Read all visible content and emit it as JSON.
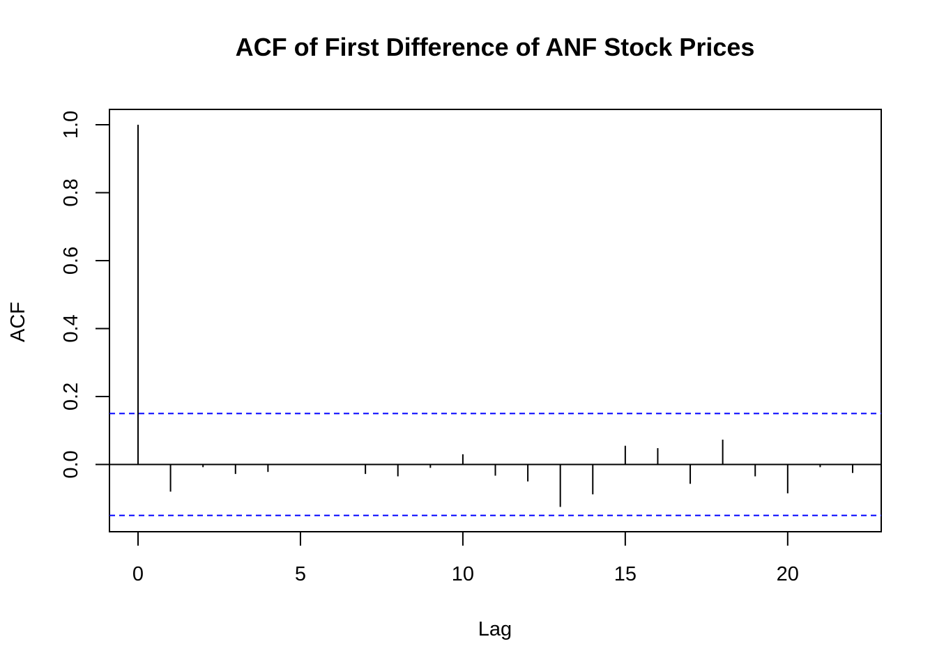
{
  "chart_data": {
    "type": "bar",
    "title": "ACF of First Difference of ANF Stock Prices",
    "xlabel": "Lag",
    "ylabel": "ACF",
    "xlim": [
      -0.88,
      22.88
    ],
    "ylim": [
      -0.198,
      1.045
    ],
    "x_ticks": [
      0,
      5,
      10,
      15,
      20
    ],
    "y_ticks": [
      0.0,
      0.2,
      0.4,
      0.6,
      0.8,
      1.0
    ],
    "x_tick_labels": [
      "0",
      "5",
      "10",
      "15",
      "20"
    ],
    "y_tick_labels": [
      "0.0",
      "0.2",
      "0.4",
      "0.6",
      "0.8",
      "1.0"
    ],
    "lags": [
      0,
      1,
      2,
      3,
      4,
      5,
      6,
      7,
      8,
      9,
      10,
      11,
      12,
      13,
      14,
      15,
      16,
      17,
      18,
      19,
      20,
      21,
      22
    ],
    "values": [
      1.0,
      -0.08,
      -0.008,
      -0.028,
      -0.022,
      -0.002,
      0.002,
      -0.028,
      -0.035,
      -0.01,
      0.03,
      -0.033,
      -0.05,
      -0.125,
      -0.088,
      0.055,
      0.048,
      -0.057,
      0.073,
      -0.035,
      -0.085,
      -0.008,
      -0.025
    ],
    "confidence_band": 0.15,
    "colors": {
      "bars": "#000000",
      "confidence": "#0000ff",
      "zero_line": "#000000"
    },
    "grid": false,
    "legend": "none"
  }
}
